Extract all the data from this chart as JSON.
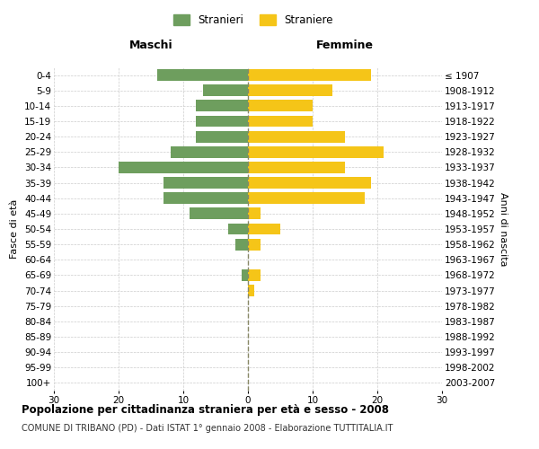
{
  "age_groups": [
    "0-4",
    "5-9",
    "10-14",
    "15-19",
    "20-24",
    "25-29",
    "30-34",
    "35-39",
    "40-44",
    "45-49",
    "50-54",
    "55-59",
    "60-64",
    "65-69",
    "70-74",
    "75-79",
    "80-84",
    "85-89",
    "90-94",
    "95-99",
    "100+"
  ],
  "birth_years": [
    "2003-2007",
    "1998-2002",
    "1993-1997",
    "1988-1992",
    "1983-1987",
    "1978-1982",
    "1973-1977",
    "1968-1972",
    "1963-1967",
    "1958-1962",
    "1953-1957",
    "1948-1952",
    "1943-1947",
    "1938-1942",
    "1933-1937",
    "1928-1932",
    "1923-1927",
    "1918-1922",
    "1913-1917",
    "1908-1912",
    "≤ 1907"
  ],
  "maschi": [
    14,
    7,
    8,
    8,
    8,
    12,
    20,
    13,
    13,
    9,
    3,
    2,
    0,
    1,
    0,
    0,
    0,
    0,
    0,
    0,
    0
  ],
  "femmine": [
    19,
    13,
    10,
    10,
    15,
    21,
    15,
    19,
    18,
    2,
    5,
    2,
    0,
    2,
    1,
    0,
    0,
    0,
    0,
    0,
    0
  ],
  "male_color": "#6e9e5e",
  "female_color": "#f5c518",
  "background_color": "#ffffff",
  "grid_color": "#cccccc",
  "center_line_color": "#888866",
  "title": "Popolazione per cittadinanza straniera per età e sesso - 2008",
  "subtitle": "COMUNE DI TRIBANO (PD) - Dati ISTAT 1° gennaio 2008 - Elaborazione TUTTITALIA.IT",
  "xlabel_left": "Maschi",
  "xlabel_right": "Femmine",
  "ylabel_left": "Fasce di età",
  "ylabel_right": "Anni di nascita",
  "legend_stranieri": "Stranieri",
  "legend_straniere": "Straniere",
  "xlim": 30,
  "xtick_positions": [
    -30,
    -20,
    -10,
    0,
    10,
    20,
    30
  ]
}
